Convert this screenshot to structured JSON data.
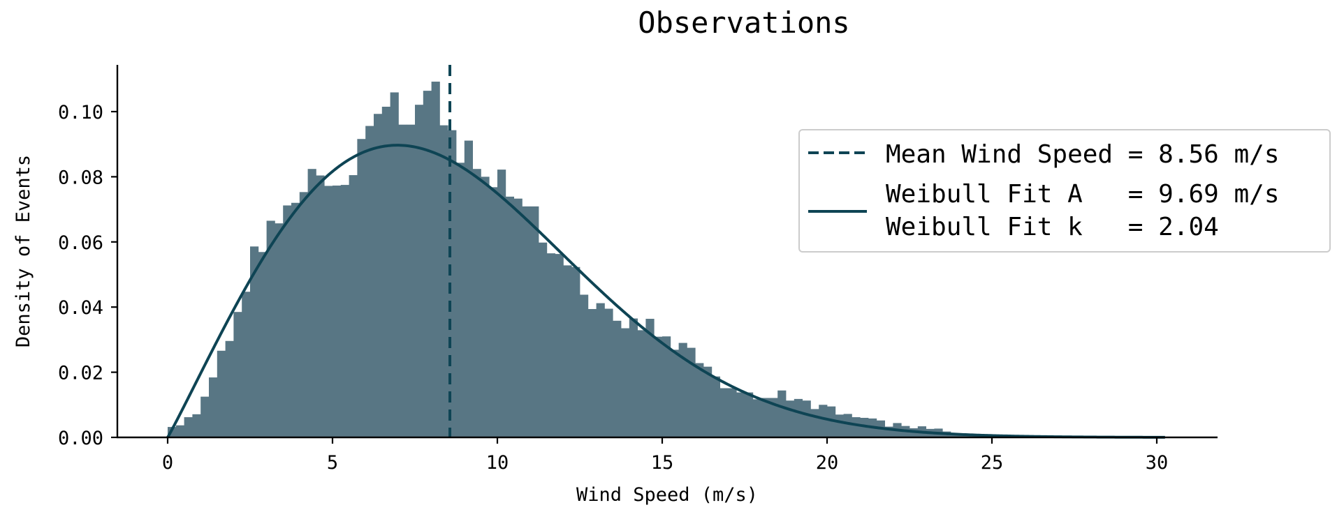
{
  "chart_data": {
    "type": "bar",
    "subtype": "histogram_with_fit",
    "title": "Observations",
    "xlabel": "Wind Speed (m/s)",
    "ylabel": "Density of Events",
    "xlim": [
      -1.53,
      31.84
    ],
    "ylim": [
      0,
      0.1143
    ],
    "xticks": [
      0,
      5,
      10,
      15,
      20,
      25,
      30
    ],
    "xtick_labels": [
      "0",
      "5",
      "10",
      "15",
      "20",
      "25",
      "30"
    ],
    "yticks": [
      0.0,
      0.02,
      0.04,
      0.06,
      0.08,
      0.1
    ],
    "ytick_labels": [
      "0.00",
      "0.02",
      "0.04",
      "0.06",
      "0.08",
      "0.10"
    ],
    "grid": false,
    "legend_position": "upper right",
    "bin_start": 0,
    "bin_width": 0.25,
    "histogram": {
      "name": "Observations",
      "color": "#587684",
      "values": [
        0.0032,
        0.0037,
        0.0062,
        0.0071,
        0.0125,
        0.0184,
        0.0266,
        0.0296,
        0.0385,
        0.0447,
        0.0586,
        0.0569,
        0.0665,
        0.0657,
        0.0712,
        0.072,
        0.0753,
        0.0824,
        0.0804,
        0.0772,
        0.0773,
        0.0775,
        0.0805,
        0.0916,
        0.0956,
        0.0993,
        0.1015,
        0.1059,
        0.096,
        0.096,
        0.1021,
        0.1064,
        0.1092,
        0.0958,
        0.0943,
        0.0843,
        0.0911,
        0.0824,
        0.08,
        0.0768,
        0.0822,
        0.0739,
        0.0733,
        0.0709,
        0.0709,
        0.0598,
        0.0565,
        0.0563,
        0.0528,
        0.0523,
        0.0438,
        0.0394,
        0.0412,
        0.0395,
        0.0358,
        0.0335,
        0.0365,
        0.0329,
        0.0364,
        0.0309,
        0.031,
        0.0269,
        0.029,
        0.0275,
        0.0228,
        0.0217,
        0.0187,
        0.0151,
        0.0151,
        0.0138,
        0.0138,
        0.0117,
        0.0121,
        0.0121,
        0.0144,
        0.0113,
        0.0118,
        0.0113,
        0.0087,
        0.01,
        0.0095,
        0.007,
        0.0072,
        0.0062,
        0.006,
        0.0058,
        0.0052,
        0.0033,
        0.0044,
        0.0035,
        0.0028,
        0.0034,
        0.0026,
        0.0027,
        0.0018,
        0.001,
        0.0008,
        0.0006,
        0.0005,
        0.0004,
        0.0003,
        0.0003,
        0.0002,
        0.0002,
        0.0002,
        0.0001,
        0.0001,
        0.0001,
        0.0001,
        0.0001,
        0.0001,
        0.0001,
        0.0001,
        0.0001,
        0.0001,
        0.0001,
        0.0001,
        0.0001,
        0.0001,
        0.0001,
        0.0001
      ]
    },
    "series": [
      {
        "name": "Mean Wind Speed = 8.56 m/s",
        "type": "vline",
        "x": 8.56,
        "style": "dashed",
        "color": "#0e4454"
      },
      {
        "name": "Weibull Fit A = 9.69 m/s, Weibull Fit k = 2.04",
        "type": "line",
        "distribution": "weibull",
        "A": 9.69,
        "k": 2.04,
        "x_range": [
          0,
          30.3
        ],
        "color": "#0e4454"
      }
    ],
    "legend": [
      {
        "marker": "dashed-line",
        "label": "Mean Wind Speed = 8.56 m/s"
      },
      {
        "marker": "solid-line",
        "label_lines": [
          "Weibull Fit A   = 9.69 m/s",
          "Weibull Fit k   = 2.04"
        ]
      }
    ]
  },
  "colors": {
    "bar": "#587684",
    "line": "#0e4454",
    "axis": "#000000",
    "legend_border": "#cccccc"
  }
}
